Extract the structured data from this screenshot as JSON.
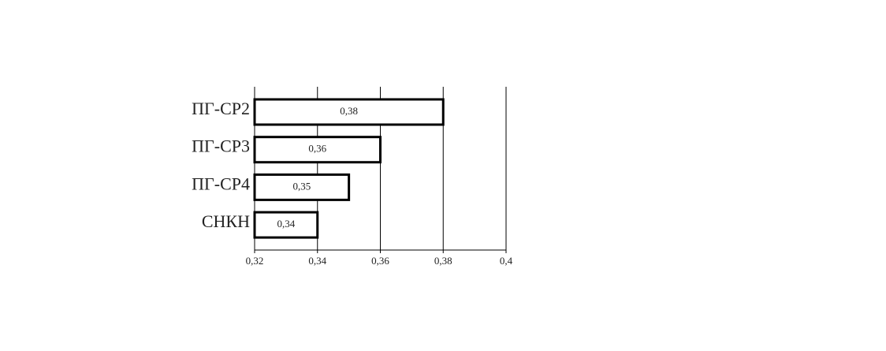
{
  "chart_data": {
    "type": "barh",
    "categories": [
      "ПГ-СР2",
      "ПГ-СР3",
      "ПГ-СР4",
      "СНКН"
    ],
    "values": [
      0.38,
      0.36,
      0.35,
      0.34
    ],
    "value_labels": [
      "0,38",
      "0,36",
      "0,35",
      "0,34"
    ],
    "color": "#ffffff",
    "xlim": [
      0.32,
      0.4
    ],
    "xticks": [
      {
        "value": 0.32,
        "label": "0,32"
      },
      {
        "value": 0.34,
        "label": "0,34"
      },
      {
        "value": 0.36,
        "label": "0,36"
      },
      {
        "value": 0.38,
        "label": "0,38"
      },
      {
        "value": 0.4,
        "label": "0,4"
      }
    ],
    "grid": true
  }
}
